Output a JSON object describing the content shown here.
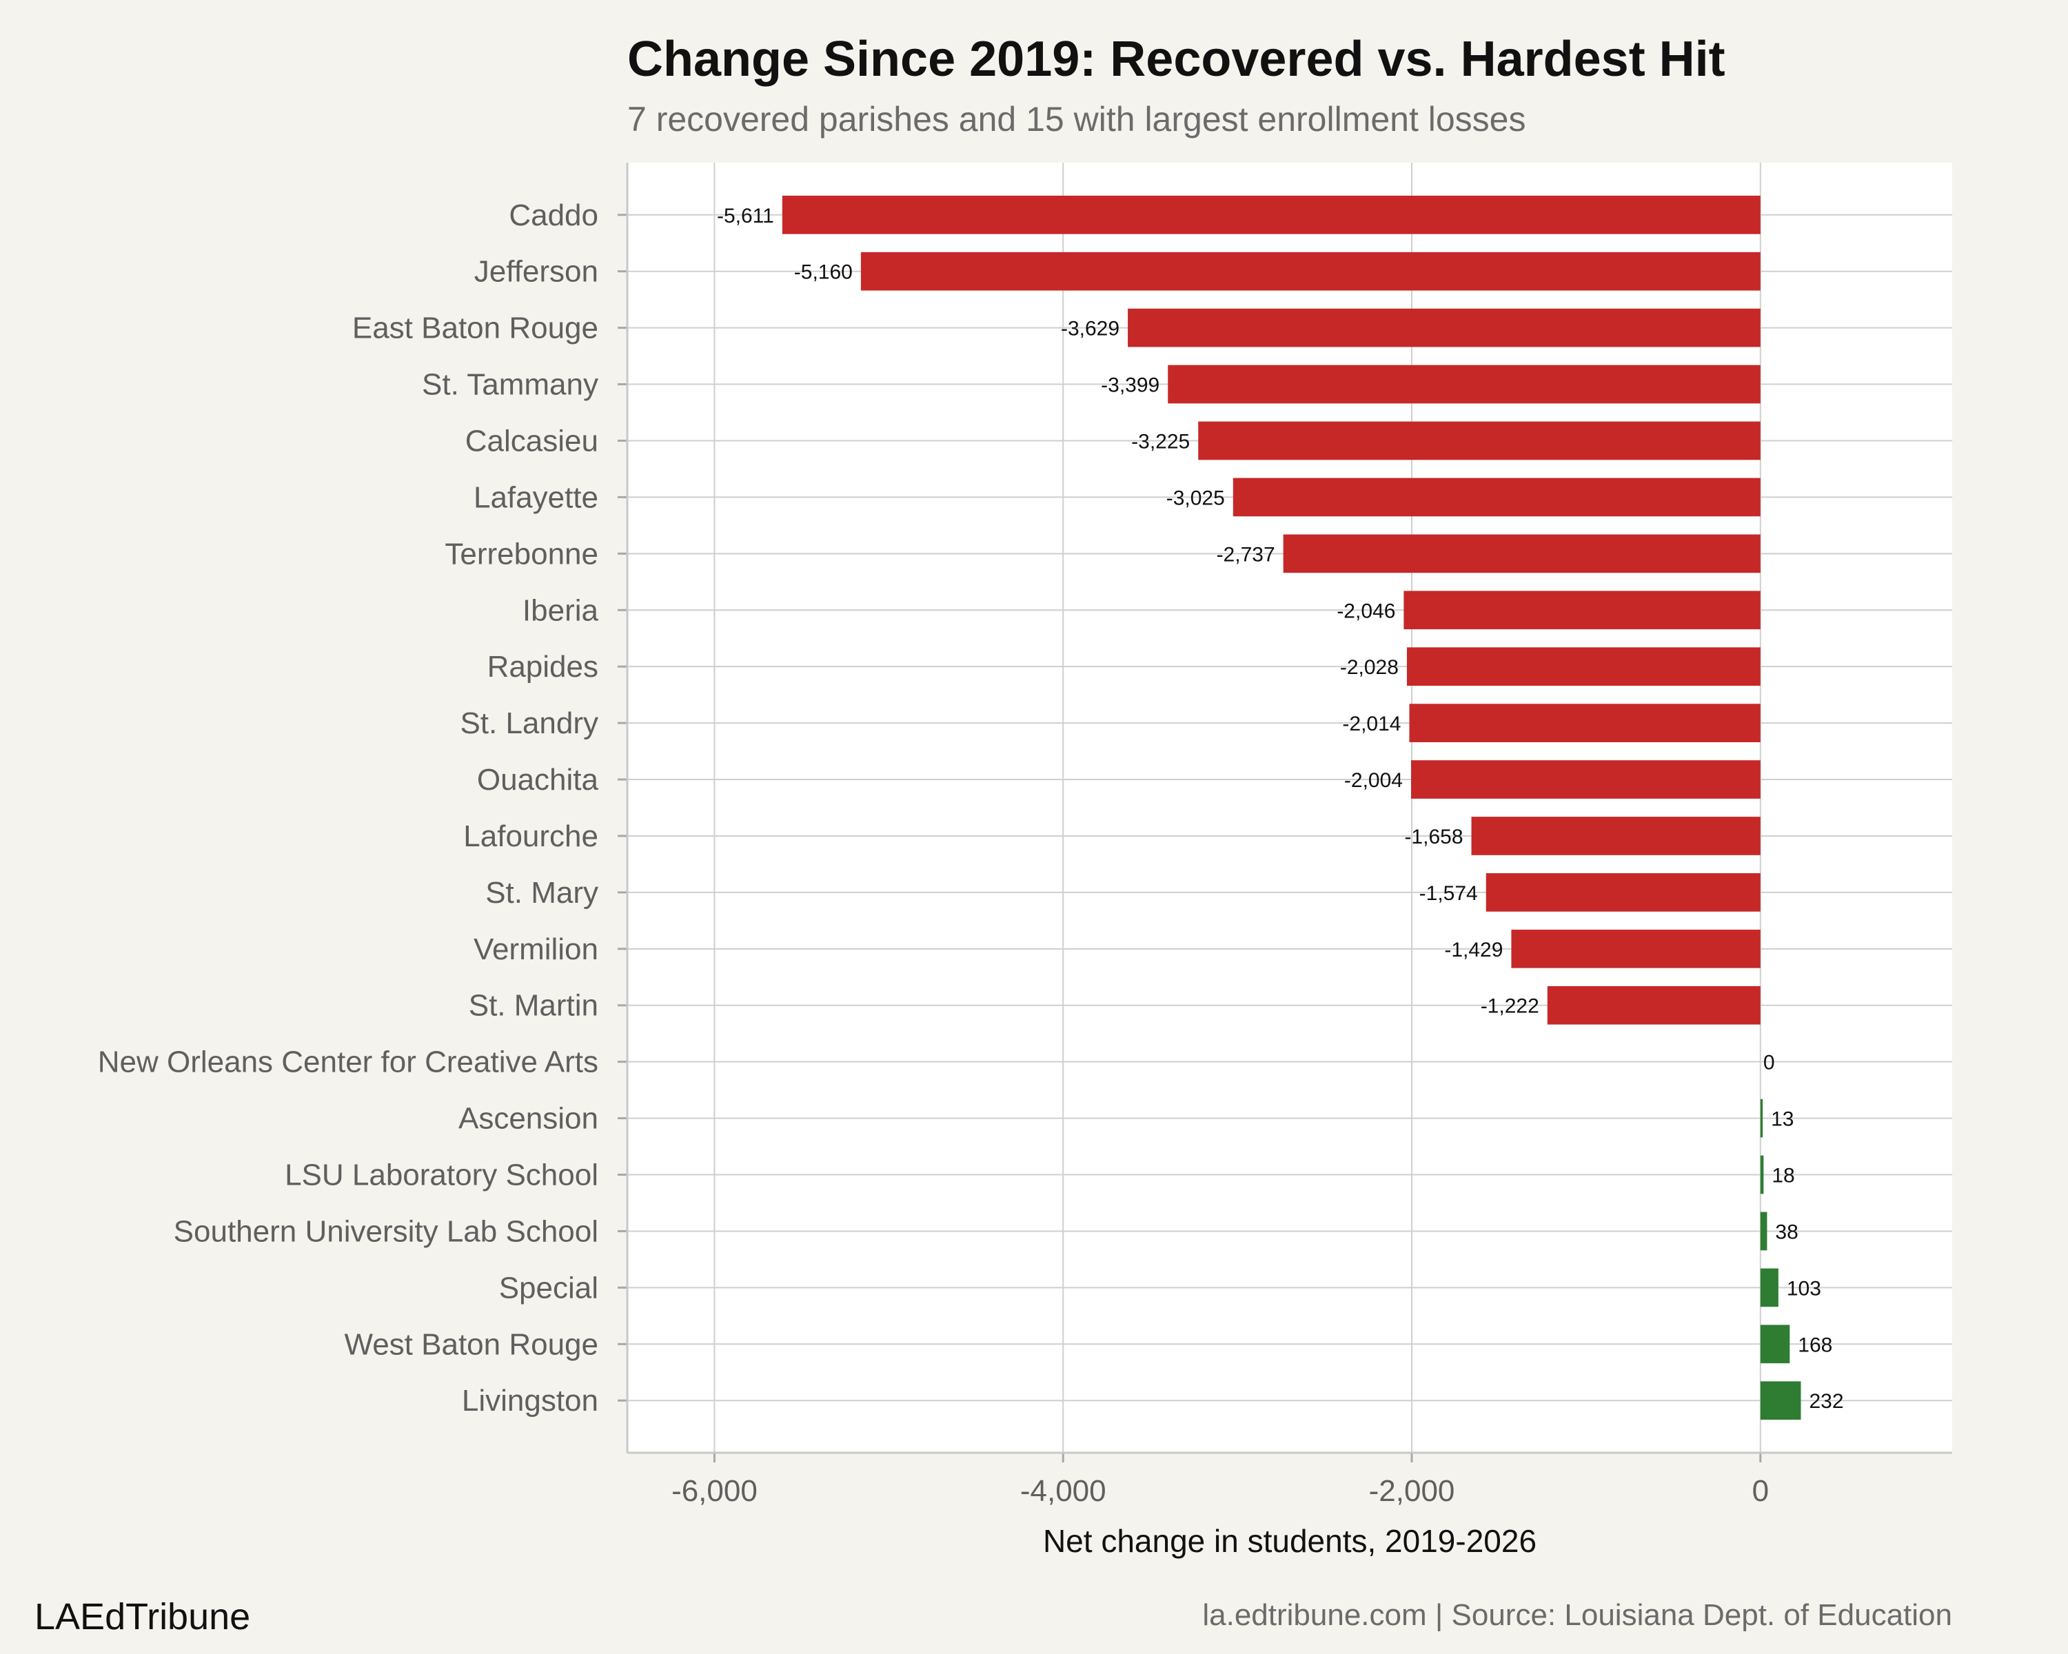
{
  "chart_data": {
    "type": "bar",
    "orientation": "horizontal",
    "title": "Change Since 2019: Recovered vs. Hardest Hit",
    "subtitle": "7 recovered parishes and 15 with largest enrollment losses",
    "xlabel": "Net change in students, 2019-2026",
    "ylabel": "",
    "xlim": [
      -6500,
      1100
    ],
    "xticks": [
      -6000,
      -4000,
      -2000,
      0
    ],
    "xtick_labels": [
      "-6,000",
      "-4,000",
      "-2,000",
      "0"
    ],
    "grid": true,
    "legend": "none",
    "categories": [
      "Caddo",
      "Jefferson",
      "East Baton Rouge",
      "St. Tammany",
      "Calcasieu",
      "Lafayette",
      "Terrebonne",
      "Iberia",
      "Rapides",
      "St. Landry",
      "Ouachita",
      "Lafourche",
      "St. Mary",
      "Vermilion",
      "St. Martin",
      "New Orleans Center for Creative Arts",
      "Ascension",
      "LSU Laboratory School",
      "Southern University Lab School",
      "Special",
      "West Baton Rouge",
      "Livingston"
    ],
    "values": [
      -5611,
      -5160,
      -3629,
      -3399,
      -3225,
      -3025,
      -2737,
      -2046,
      -2028,
      -2014,
      -2004,
      -1658,
      -1574,
      -1429,
      -1222,
      0,
      13,
      18,
      38,
      103,
      168,
      232
    ],
    "value_labels": [
      "-5,611",
      "-5,160",
      "-3,629",
      "-3,399",
      "-3,225",
      "-3,025",
      "-2,737",
      "-2,046",
      "-2,028",
      "-2,014",
      "-2,004",
      "-1,658",
      "-1,574",
      "-1,429",
      "-1,222",
      "0",
      "13",
      "18",
      "38",
      "103",
      "168",
      "232"
    ],
    "colors": {
      "loss": "#c62828",
      "gain": "#2e7d32",
      "panel": "#ffffff",
      "background": "#f5f3ee",
      "grid": "#cfcfcf"
    }
  },
  "branding": {
    "logo_text": "LAEdTribune",
    "source": "la.edtribune.com | Source: Louisiana Dept. of Education"
  }
}
